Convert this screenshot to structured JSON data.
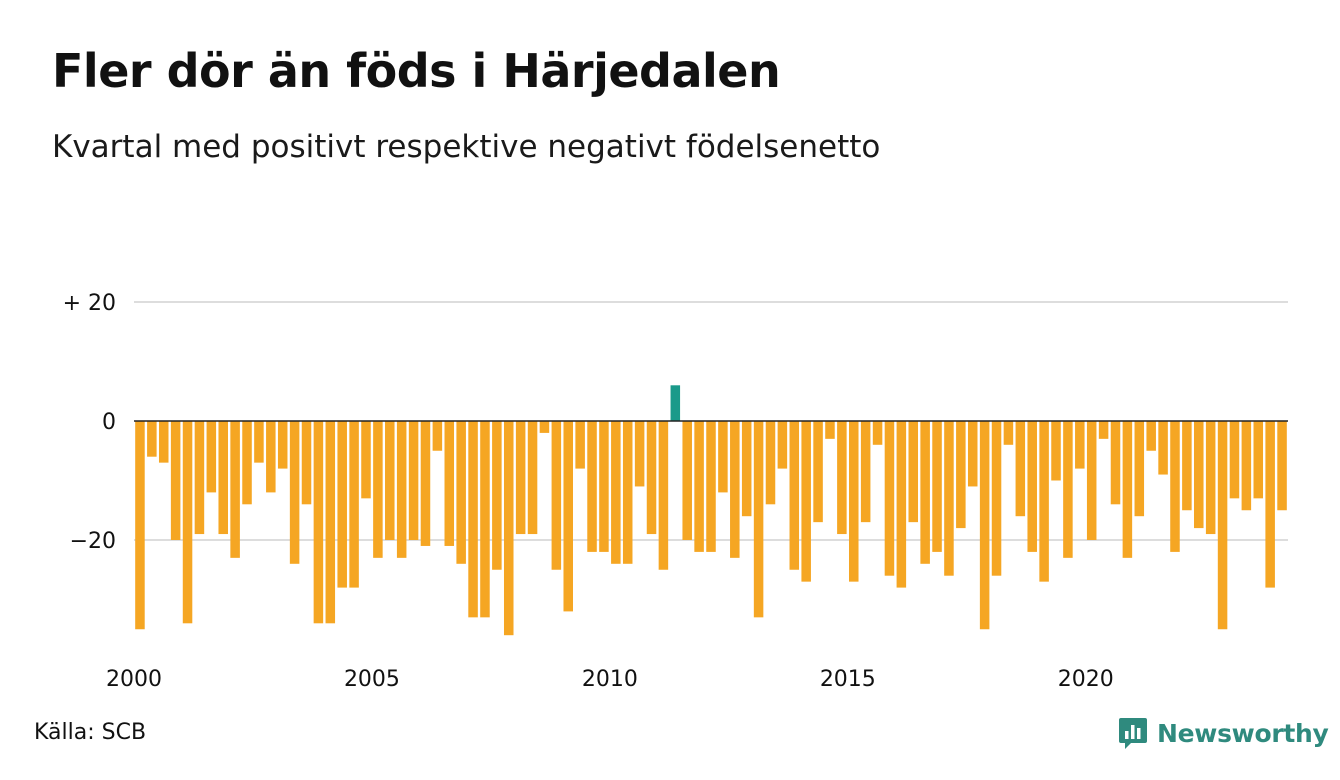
{
  "header": {
    "title": "Fler dör än föds i Härjedalen",
    "subtitle": "Kvartal med positivt respektive negativt födelsenetto"
  },
  "footer": {
    "source": "Källa: SCB",
    "brand": "Newsworthy"
  },
  "colors": {
    "negative": "#f5a623",
    "positive": "#1a9a8a",
    "grid": "#dddddd",
    "zero_line": "#222222",
    "brand": "#2f8a7e"
  },
  "chart_data": {
    "type": "bar",
    "title": "Fler dör än föds i Härjedalen",
    "subtitle": "Kvartal med positivt respektive negativt födelsenetto",
    "xlabel": "",
    "ylabel": "",
    "ylim": [
      -37,
      30
    ],
    "grid": true,
    "legend": "none",
    "x_start": 2000,
    "periods_per_year": 4,
    "yticks": [
      {
        "value": 20,
        "label": "+ 20"
      },
      {
        "value": 0,
        "label": "0"
      },
      {
        "value": -20,
        "label": "−20"
      }
    ],
    "xticks": [
      {
        "value": 2000,
        "label": "2000"
      },
      {
        "value": 2005,
        "label": "2005"
      },
      {
        "value": 2010,
        "label": "2010"
      },
      {
        "value": 2015,
        "label": "2015"
      },
      {
        "value": 2020,
        "label": "2020"
      }
    ],
    "values": [
      -35,
      -6,
      -7,
      -20,
      -34,
      -19,
      -12,
      -19,
      -23,
      -14,
      -7,
      -12,
      -8,
      -24,
      -14,
      -34,
      -34,
      -28,
      -28,
      -13,
      -23,
      -20,
      -23,
      -20,
      -21,
      -5,
      -21,
      -24,
      -33,
      -33,
      -25,
      -36,
      -19,
      -19,
      -2,
      -25,
      -32,
      -8,
      -22,
      -22,
      -24,
      -24,
      -11,
      -19,
      -25,
      6,
      -20,
      -22,
      -22,
      -12,
      -23,
      -16,
      -33,
      -14,
      -8,
      -25,
      -27,
      -17,
      -3,
      -19,
      -27,
      -17,
      -4,
      -26,
      -28,
      -17,
      -24,
      -22,
      -26,
      -18,
      -11,
      -35,
      -26,
      -4,
      -16,
      -22,
      -27,
      -10,
      -23,
      -8,
      -20,
      -3,
      -14,
      -23,
      -16,
      -5,
      -9,
      -22,
      -15,
      -18,
      -19,
      -35,
      -13,
      -15,
      -13,
      -28,
      -15
    ]
  }
}
